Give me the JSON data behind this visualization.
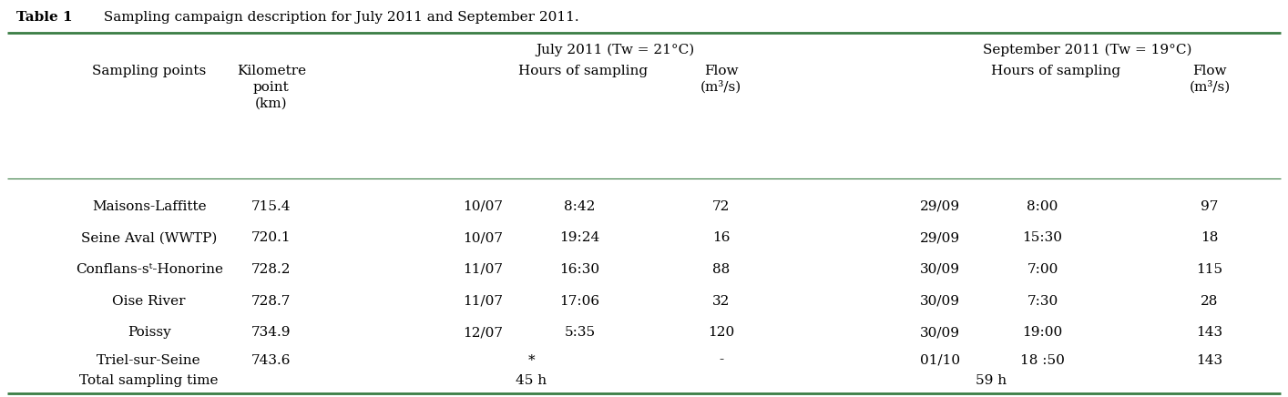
{
  "title_bold": "Table 1",
  "title_rest": " Sampling campaign description for July 2011 and September 2011.",
  "green": "#3a7d44",
  "bg_color": "#ffffff",
  "font_size": 11.0,
  "rows": [
    [
      "Maisons-Laffitte",
      "715.4",
      "10/07",
      "8:42",
      "72",
      "29/09",
      "8:00",
      "97"
    ],
    [
      "Seine Aval (WWTP)",
      "720.1",
      "10/07",
      "19:24",
      "16",
      "29/09",
      "15:30",
      "18"
    ],
    [
      "Conflans-sᵗ-Honorine",
      "728.2",
      "11/07",
      "16:30",
      "88",
      "30/09",
      "7:00",
      "115"
    ],
    [
      "Oise River",
      "728.7",
      "11/07",
      "17:06",
      "32",
      "30/09",
      "7:30",
      "28"
    ],
    [
      "Poissy",
      "734.9",
      "12/07",
      "5:35",
      "120",
      "30/09",
      "19:00",
      "143"
    ],
    [
      "Triel-sur-Seine",
      "743.6",
      "*",
      "",
      "-",
      "01/10",
      "18 :50",
      "143"
    ]
  ],
  "footer": [
    "Total sampling time",
    "45 h",
    "59 h"
  ]
}
